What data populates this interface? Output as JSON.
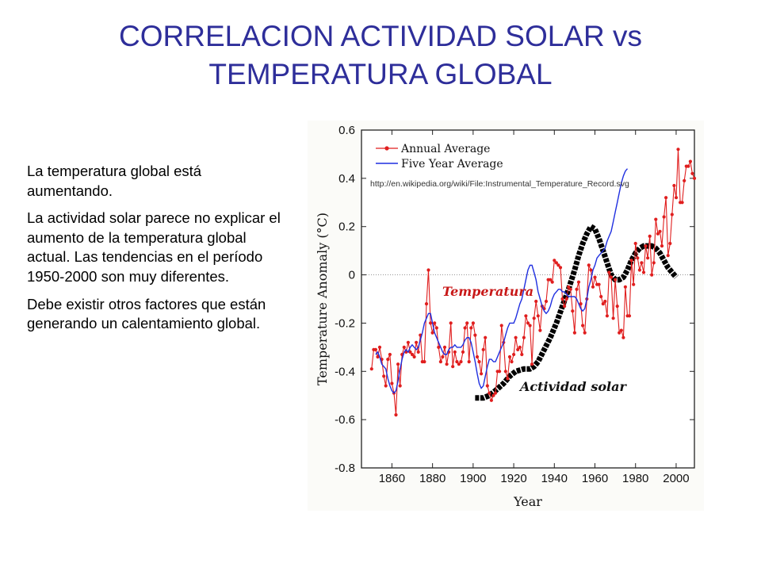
{
  "slide": {
    "title_line1": "CORRELACION ACTIVIDAD SOLAR vs",
    "title_line2": "TEMPERATURA GLOBAL",
    "paragraphs": [
      "La temperatura global está aumentando.",
      "La actividad solar parece no explicar el aumento de  la temperatura global actual. Las tendencias en el período 1950-2000 son muy diferentes.",
      "Debe existir otros factores que están generando un calentamiento global."
    ]
  },
  "chart_data": {
    "type": "line",
    "xlabel": "Year",
    "ylabel": "Temperature Anomaly (°C)",
    "xlim": [
      1845,
      2009
    ],
    "ylim": [
      -0.8,
      0.6
    ],
    "x_ticks": [
      1860,
      1880,
      1900,
      1920,
      1940,
      1960,
      1980,
      2000
    ],
    "y_ticks": [
      -0.8,
      -0.6,
      -0.4,
      -0.2,
      0,
      0.2,
      0.4,
      0.6
    ],
    "y_tick_labels": [
      "-0.8",
      "-0.6",
      "-0.4",
      "-0.2",
      "0",
      "0.2",
      "0.4",
      "0.6"
    ],
    "zero_line": true,
    "legend_position": "top-left",
    "source_url": "http://en.wikipedia.org/wiki/File:Instrumental_Temperature_Record.svg",
    "annotations": [
      "Temperatura",
      "Actividad solar"
    ],
    "colors": {
      "annual": "#e01e1e",
      "five_year": "#1f2fe0",
      "solar": "#000000",
      "zero_line": "#888888"
    },
    "series": [
      {
        "name": "Annual Average",
        "x_start": 1850,
        "values": [
          -0.39,
          -0.31,
          -0.31,
          -0.34,
          -0.3,
          -0.35,
          -0.42,
          -0.46,
          -0.35,
          -0.33,
          -0.45,
          -0.49,
          -0.58,
          -0.37,
          -0.46,
          -0.33,
          -0.3,
          -0.32,
          -0.28,
          -0.32,
          -0.33,
          -0.34,
          -0.28,
          -0.32,
          -0.25,
          -0.36,
          -0.36,
          -0.12,
          0.02,
          -0.2,
          -0.24,
          -0.2,
          -0.22,
          -0.3,
          -0.36,
          -0.34,
          -0.3,
          -0.37,
          -0.32,
          -0.2,
          -0.38,
          -0.32,
          -0.36,
          -0.37,
          -0.36,
          -0.32,
          -0.22,
          -0.2,
          -0.36,
          -0.22,
          -0.2,
          -0.25,
          -0.34,
          -0.36,
          -0.41,
          -0.31,
          -0.26,
          -0.46,
          -0.49,
          -0.52,
          -0.5,
          -0.49,
          -0.4,
          -0.4,
          -0.21,
          -0.28,
          -0.4,
          -0.43,
          -0.34,
          -0.36,
          -0.33,
          -0.26,
          -0.31,
          -0.3,
          -0.33,
          -0.26,
          -0.17,
          -0.2,
          -0.21,
          -0.37,
          -0.18,
          -0.11,
          -0.17,
          -0.23,
          -0.13,
          -0.14,
          -0.11,
          -0.02,
          -0.02,
          -0.03,
          0.06,
          0.05,
          0.04,
          0.03,
          -0.1,
          -0.13,
          -0.1,
          -0.05,
          -0.06,
          -0.15,
          -0.24,
          -0.06,
          -0.03,
          -0.12,
          -0.21,
          -0.24,
          -0.1,
          0.04,
          0.02,
          -0.05,
          -0.01,
          -0.04,
          -0.04,
          -0.09,
          -0.12,
          -0.11,
          -0.17,
          0.01,
          -0.01,
          -0.18,
          -0.02,
          -0.13,
          -0.24,
          -0.23,
          -0.26,
          -0.05,
          -0.17,
          -0.17,
          0.06,
          -0.04,
          0.13,
          0.07,
          0.02,
          0.05,
          0.01,
          0.12,
          0.07,
          0.16,
          0.0,
          0.05,
          0.23,
          0.17,
          0.18,
          0.12,
          0.24,
          0.32,
          0.08,
          0.13,
          0.25,
          0.37,
          0.32,
          0.52,
          0.3,
          0.3,
          0.39,
          0.45,
          0.45,
          0.47,
          0.42,
          0.4
        ]
      },
      {
        "name": "Five Year Average",
        "x_start": 1852,
        "values": [
          -0.33,
          -0.32,
          -0.34,
          -0.37,
          -0.38,
          -0.39,
          -0.43,
          -0.46,
          -0.48,
          -0.49,
          -0.48,
          -0.44,
          -0.39,
          -0.35,
          -0.32,
          -0.31,
          -0.32,
          -0.3,
          -0.29,
          -0.3,
          -0.31,
          -0.3,
          -0.27,
          -0.24,
          -0.2,
          -0.18,
          -0.16,
          -0.16,
          -0.2,
          -0.24,
          -0.26,
          -0.28,
          -0.3,
          -0.32,
          -0.33,
          -0.33,
          -0.31,
          -0.3,
          -0.3,
          -0.29,
          -0.3,
          -0.3,
          -0.3,
          -0.29,
          -0.27,
          -0.26,
          -0.26,
          -0.28,
          -0.32,
          -0.36,
          -0.41,
          -0.45,
          -0.47,
          -0.46,
          -0.42,
          -0.38,
          -0.35,
          -0.35,
          -0.36,
          -0.36,
          -0.34,
          -0.32,
          -0.3,
          -0.28,
          -0.25,
          -0.22,
          -0.2,
          -0.2,
          -0.2,
          -0.18,
          -0.15,
          -0.12,
          -0.1,
          -0.06,
          -0.02,
          0.02,
          0.04,
          0.04,
          0.01,
          -0.02,
          -0.07,
          -0.1,
          -0.13,
          -0.15,
          -0.16,
          -0.15,
          -0.13,
          -0.1,
          -0.08,
          -0.07,
          -0.06,
          -0.06,
          -0.07,
          -0.07,
          -0.08,
          -0.09,
          -0.09,
          -0.09,
          -0.09,
          -0.1,
          -0.12,
          -0.14,
          -0.15,
          -0.14,
          -0.1,
          -0.05,
          -0.02,
          0.02,
          0.04,
          0.07,
          0.08,
          0.09,
          0.1,
          0.11,
          0.14,
          0.16,
          0.18,
          0.22,
          0.26,
          0.3,
          0.34,
          0.38,
          0.41,
          0.43,
          0.44
        ]
      },
      {
        "name": "Actividad solar",
        "x": [
          1901,
          1905,
          1908,
          1911,
          1915,
          1918,
          1921,
          1925,
          1928,
          1930,
          1932,
          1935,
          1938,
          1941,
          1944,
          1947,
          1950,
          1952,
          1954,
          1956,
          1958,
          1960,
          1962,
          1964,
          1966,
          1968,
          1970,
          1972,
          1974,
          1976,
          1978,
          1980,
          1982,
          1984,
          1986,
          1988,
          1990,
          1992,
          1994,
          1996,
          1998,
          2000
        ],
        "values": [
          -0.51,
          -0.51,
          -0.5,
          -0.48,
          -0.45,
          -0.42,
          -0.4,
          -0.39,
          -0.39,
          -0.38,
          -0.36,
          -0.31,
          -0.26,
          -0.2,
          -0.13,
          -0.06,
          0.02,
          0.08,
          0.13,
          0.17,
          0.2,
          0.19,
          0.15,
          0.1,
          0.05,
          0.0,
          -0.02,
          -0.02,
          -0.01,
          0.02,
          0.06,
          0.09,
          0.11,
          0.12,
          0.12,
          0.12,
          0.11,
          0.09,
          0.06,
          0.03,
          0.01,
          -0.01
        ]
      }
    ]
  }
}
